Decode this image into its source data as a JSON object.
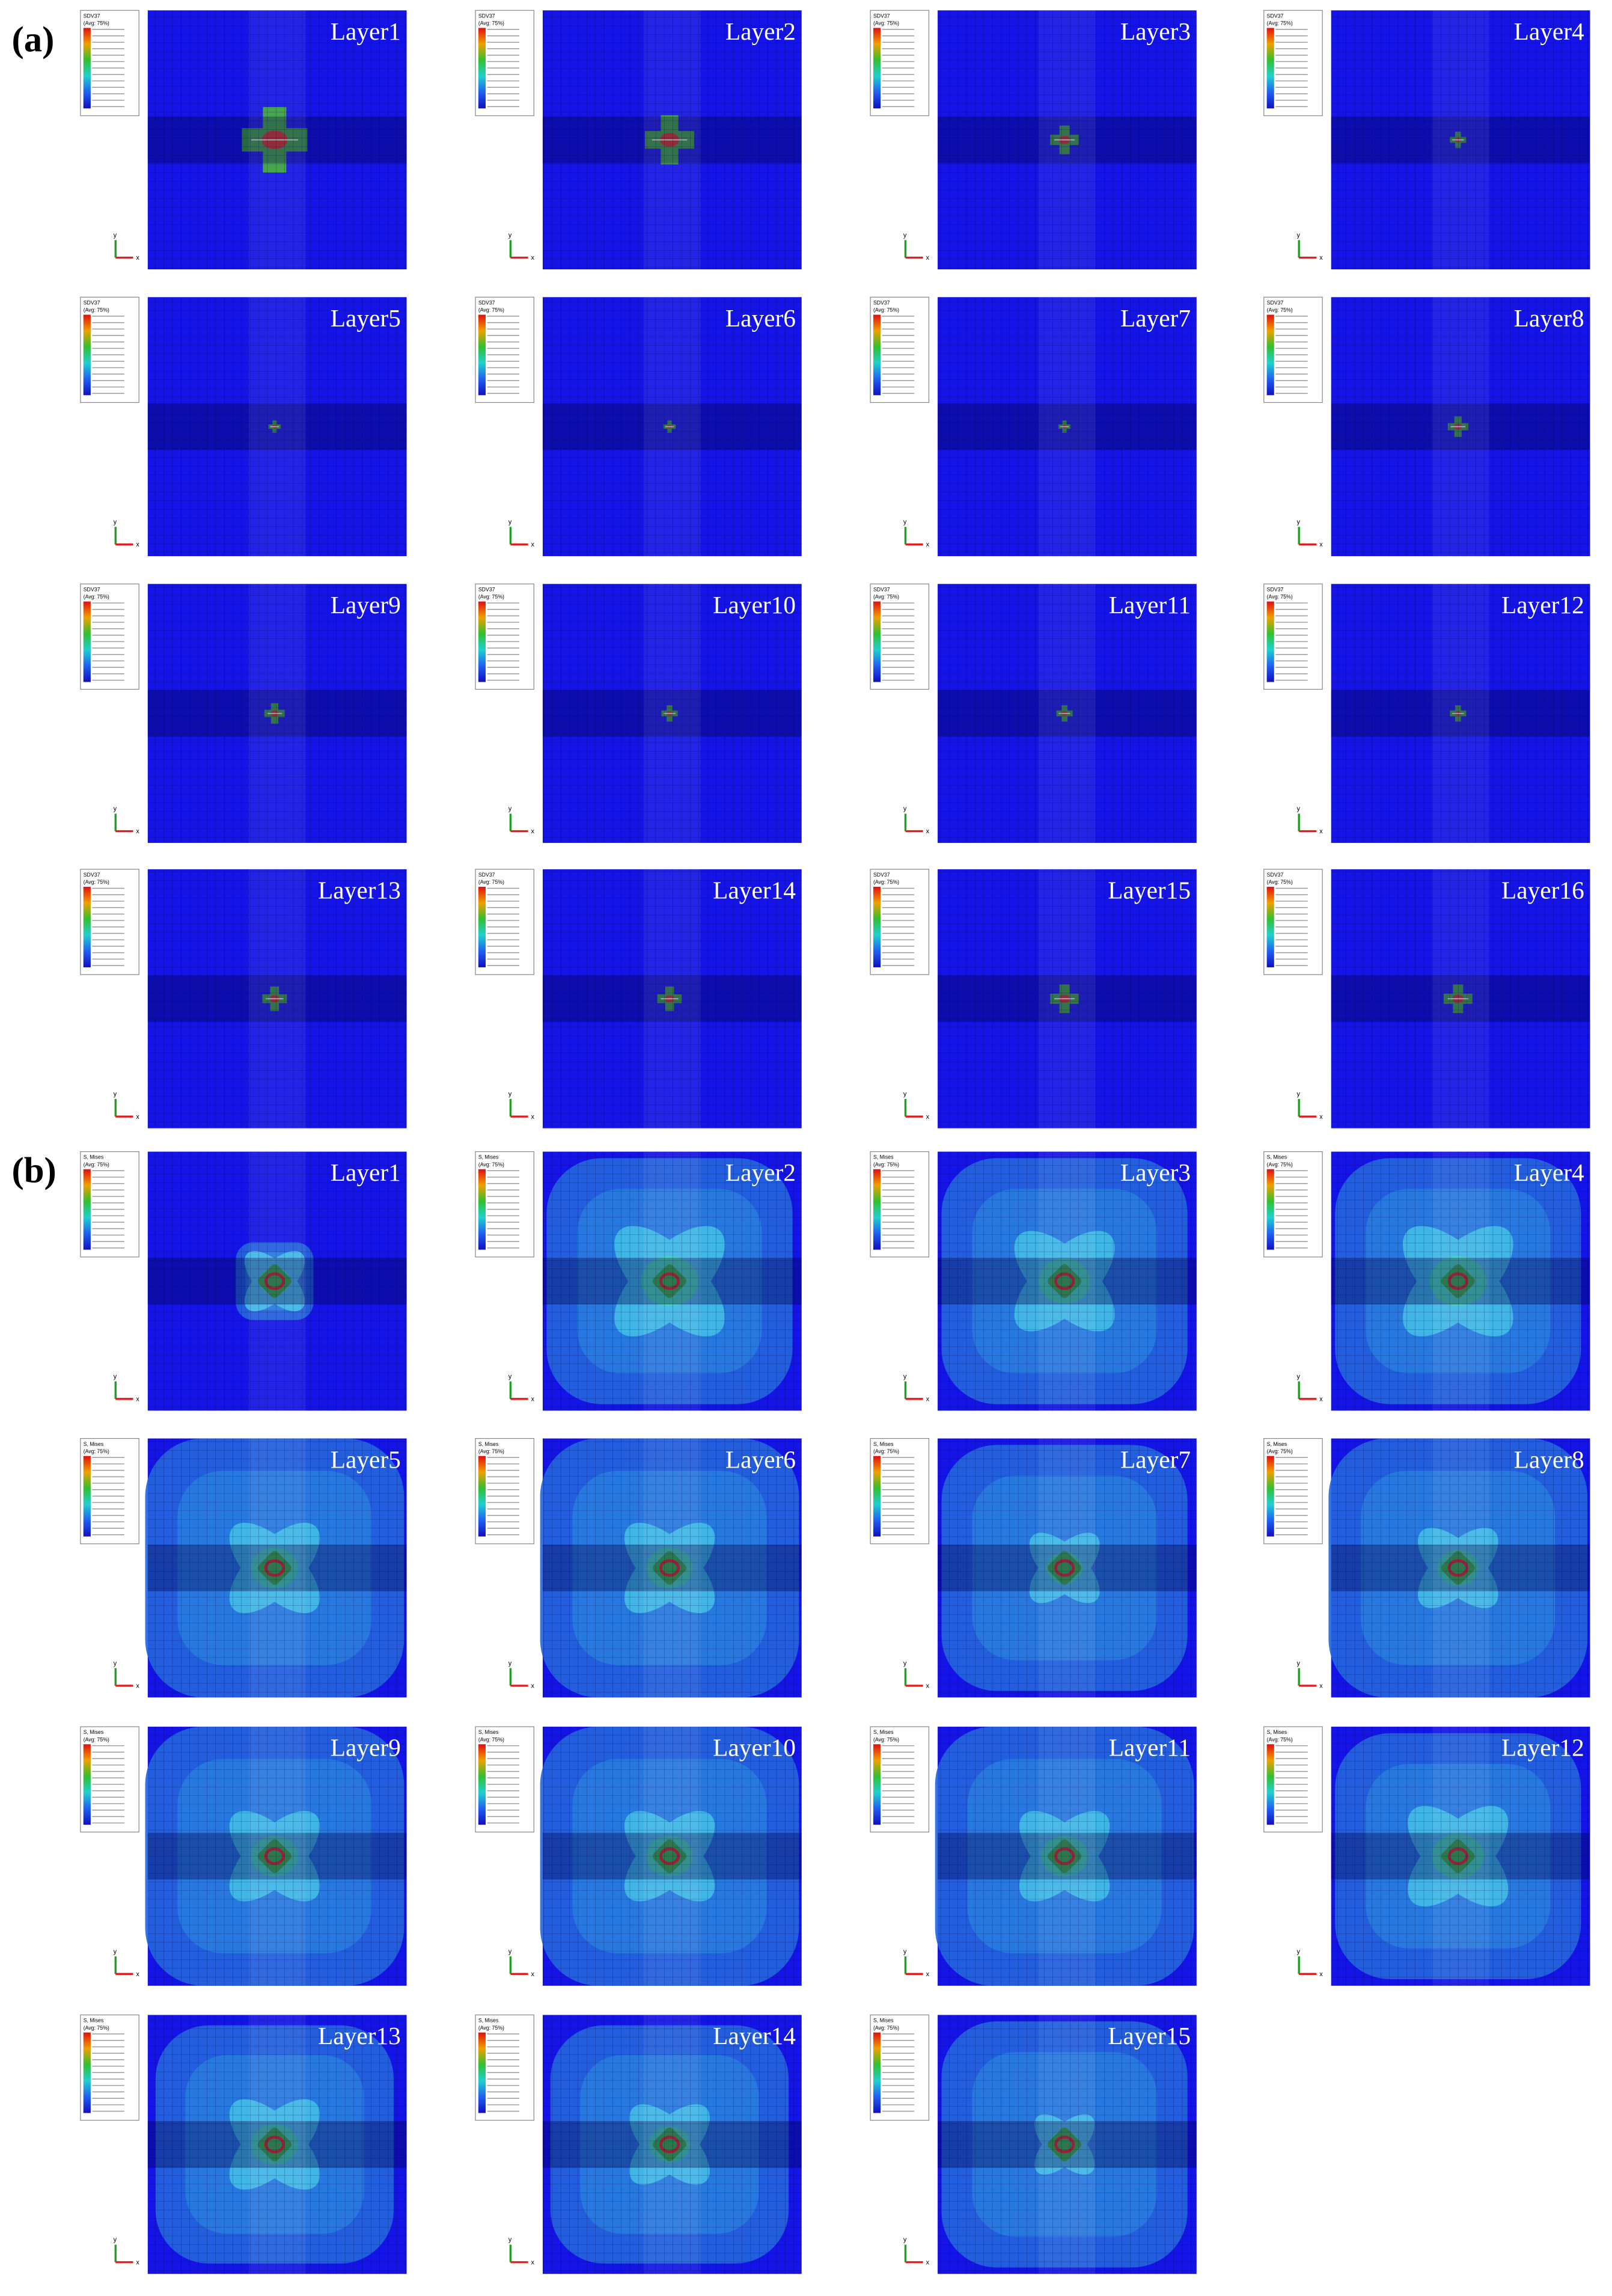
{
  "figure": {
    "panels": [
      {
        "label": "(a)",
        "legend_title": "SDV37",
        "legend_note": "(Avg: 75%)",
        "layers": [
          "Layer1",
          "Layer2",
          "Layer3",
          "Layer4",
          "Layer5",
          "Layer6",
          "Layer7",
          "Layer8",
          "Layer9",
          "Layer10",
          "Layer11",
          "Layer12",
          "Layer13",
          "Layer14",
          "Layer15",
          "Layer16"
        ]
      },
      {
        "label": "(b)",
        "legend_title": "S, Mises",
        "legend_note": "(Avg: 75%)",
        "layers": [
          "Layer1",
          "Layer2",
          "Layer3",
          "Layer4",
          "Layer5",
          "Layer6",
          "Layer7",
          "Layer8",
          "Layer9",
          "Layer10",
          "Layer11",
          "Layer12",
          "Layer13",
          "Layer14",
          "Layer15"
        ]
      }
    ],
    "axis_labels": {
      "y": "y",
      "x": "x"
    }
  }
}
